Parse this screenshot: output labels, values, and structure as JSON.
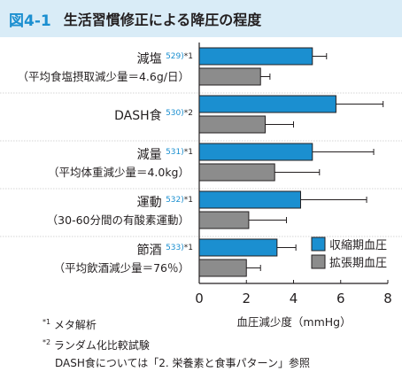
{
  "header": {
    "figure_number": "図4-1",
    "title": "生活習慣修正による降圧の程度"
  },
  "chart_data": {
    "type": "bar",
    "orientation": "horizontal",
    "categories": [
      {
        "label": "減塩",
        "ref": "529)",
        "marker": "*1",
        "sub": "（平均食塩摂取減少量＝4.6g/日）"
      },
      {
        "label": "DASH食",
        "ref": "530)",
        "marker": "*2",
        "sub": ""
      },
      {
        "label": "減量",
        "ref": "531)",
        "marker": "*1",
        "sub": "（平均体重減少量＝4.0kg）"
      },
      {
        "label": "運動",
        "ref": "532)",
        "marker": "*1",
        "sub": "（30-60分間の有酸素運動）"
      },
      {
        "label": "節酒",
        "ref": "533)",
        "marker": "*1",
        "sub": "（平均飲酒減少量＝76％）"
      }
    ],
    "series": [
      {
        "name": "収縮期血圧",
        "color": "#1b8fd0",
        "values": [
          4.8,
          5.8,
          4.8,
          4.3,
          3.3
        ],
        "error_upper": [
          5.4,
          7.8,
          7.4,
          7.1,
          4.1
        ]
      },
      {
        "name": "拡張期血圧",
        "color": "#8c8c8c",
        "values": [
          2.6,
          2.8,
          3.2,
          2.1,
          2.0
        ],
        "error_upper": [
          3.0,
          4.0,
          5.1,
          3.7,
          2.6
        ]
      }
    ],
    "xlim": [
      0,
      8
    ],
    "xticks": [
      "0",
      "2",
      "4",
      "6",
      "8"
    ],
    "xlabel": "血圧減少度（mmHg）",
    "legend_position": "bottom-right"
  },
  "notes": [
    {
      "marker": "*1",
      "text": "メタ解析"
    },
    {
      "marker": "*2",
      "text": "ランダム化比較試験"
    },
    {
      "marker": "",
      "text": "DASH食については「2. 栄養素と食事パターン」参照"
    }
  ]
}
